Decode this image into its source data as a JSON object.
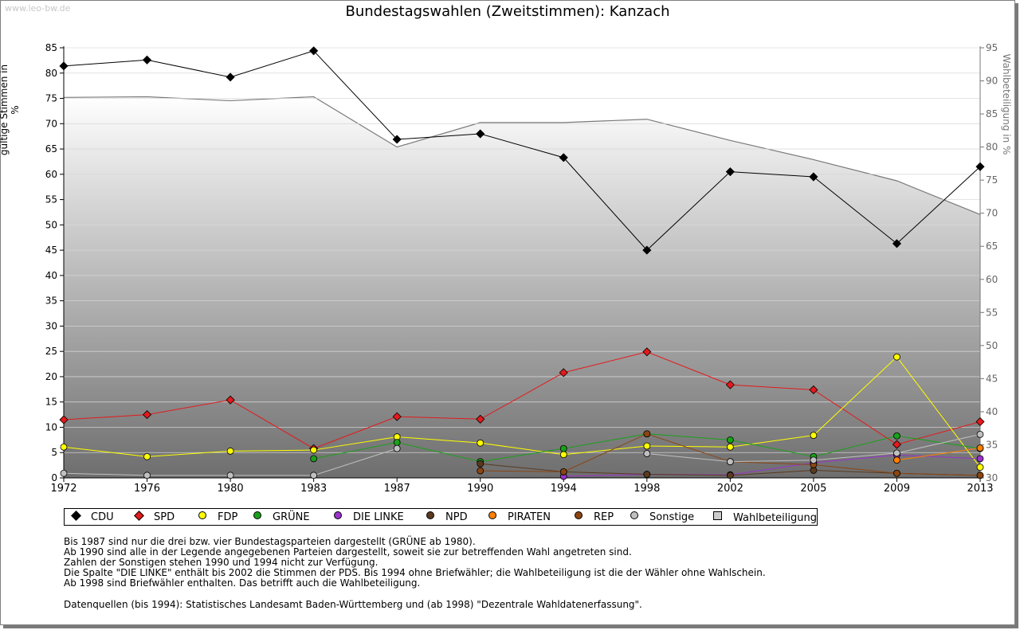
{
  "watermark": "www.leo-bw.de",
  "chart_data": {
    "type": "line",
    "title": "Bundestagswahlen (Zweitstimmen): Kanzach",
    "ylabel": "gültige Stimmen in %",
    "y2label": "Wahlbeteiligung in %",
    "ylim": [
      0,
      85
    ],
    "y2lim": [
      30,
      95
    ],
    "x": [
      "1972",
      "1976",
      "1980",
      "1983",
      "1987",
      "1990",
      "1994",
      "1998",
      "2002",
      "2005",
      "2009",
      "2013"
    ],
    "yticks": [
      "0",
      "5",
      "10",
      "15",
      "20",
      "25",
      "30",
      "35",
      "40",
      "45",
      "50",
      "55",
      "60",
      "65",
      "70",
      "75",
      "80",
      "85"
    ],
    "y2ticks": [
      "30",
      "35",
      "40",
      "45",
      "50",
      "55",
      "60",
      "65",
      "70",
      "75",
      "80",
      "85",
      "90",
      "95"
    ],
    "grid": true,
    "legend_position": "bottom",
    "series": [
      {
        "name": "CDU",
        "color": "#000000",
        "marker": "diamond",
        "values": [
          81.4,
          82.6,
          79.2,
          84.4,
          66.9,
          68.0,
          63.3,
          45.0,
          60.5,
          59.5,
          46.3,
          61.5
        ]
      },
      {
        "name": "SPD",
        "color": "#e31a1c",
        "marker": "diamond",
        "values": [
          11.5,
          12.5,
          15.4,
          5.8,
          12.1,
          11.6,
          20.8,
          24.9,
          18.4,
          17.4,
          6.6,
          11.1
        ]
      },
      {
        "name": "FDP",
        "color": "#ffff00",
        "marker": "round",
        "values": [
          6.1,
          4.2,
          5.3,
          5.5,
          8.1,
          6.9,
          4.6,
          6.3,
          6.1,
          8.4,
          23.9,
          2.1
        ]
      },
      {
        "name": "GRÜNE",
        "color": "#1aa01a",
        "marker": "round",
        "values": [
          null,
          null,
          null,
          3.8,
          7.0,
          3.2,
          5.8,
          8.7,
          7.5,
          4.2,
          8.3,
          5.8
        ]
      },
      {
        "name": "DIE LINKE",
        "color": "#9933cc",
        "marker": "round",
        "values": [
          null,
          null,
          null,
          null,
          null,
          null,
          0.3,
          0.7,
          0.6,
          3.0,
          4.5,
          3.8
        ]
      },
      {
        "name": "NPD",
        "color": "#5a3a20",
        "marker": "round",
        "values": [
          null,
          null,
          null,
          null,
          null,
          2.8,
          1.2,
          0.7,
          0.5,
          1.5,
          0.9,
          0.5
        ]
      },
      {
        "name": "PIRATEN",
        "color": "#ff8000",
        "marker": "round",
        "values": [
          null,
          null,
          null,
          null,
          null,
          null,
          null,
          null,
          null,
          null,
          3.5,
          5.9
        ]
      },
      {
        "name": "REP",
        "color": "#8b4513",
        "marker": "round",
        "values": [
          null,
          null,
          null,
          null,
          null,
          1.4,
          1.2,
          8.7,
          3.2,
          2.6,
          0.9,
          0.5
        ]
      },
      {
        "name": "Sonstige",
        "color": "#c0c0c0",
        "marker": "round",
        "values": [
          0.9,
          0.5,
          0.5,
          0.5,
          5.8,
          null,
          null,
          4.8,
          3.2,
          3.5,
          4.9,
          8.6
        ]
      }
    ],
    "turnout": {
      "name": "Wahlbeteiligung",
      "color": "#cccccc",
      "axis": "right",
      "values": [
        87.5,
        87.6,
        87.0,
        87.6,
        80.0,
        83.7,
        83.7,
        84.2,
        81.0,
        78.1,
        74.9,
        69.8
      ]
    }
  },
  "notes": [
    "Bis 1987 sind nur die drei bzw. vier Bundestagsparteien dargestellt (GRÜNE ab 1980).",
    "Ab 1990 sind alle in der Legende angegebenen Parteien dargestellt, soweit sie zur betreffenden Wahl angetreten sind.",
    "Zahlen der Sonstigen stehen 1990 und 1994 nicht zur Verfügung.",
    "Die Spalte \"DIE LINKE\" enthält bis 2002 die Stimmen der PDS. Bis 1994 ohne Briefwähler; die Wahlbeteiligung ist die der Wähler ohne Wahlschein.",
    "Ab 1998 sind Briefwähler enthalten. Das betrifft auch die Wahlbeteiligung."
  ],
  "source": "Datenquellen (bis 1994): Statistisches Landesamt Baden-Württemberg und (ab 1998) \"Dezentrale Wahldatenerfassung\"."
}
